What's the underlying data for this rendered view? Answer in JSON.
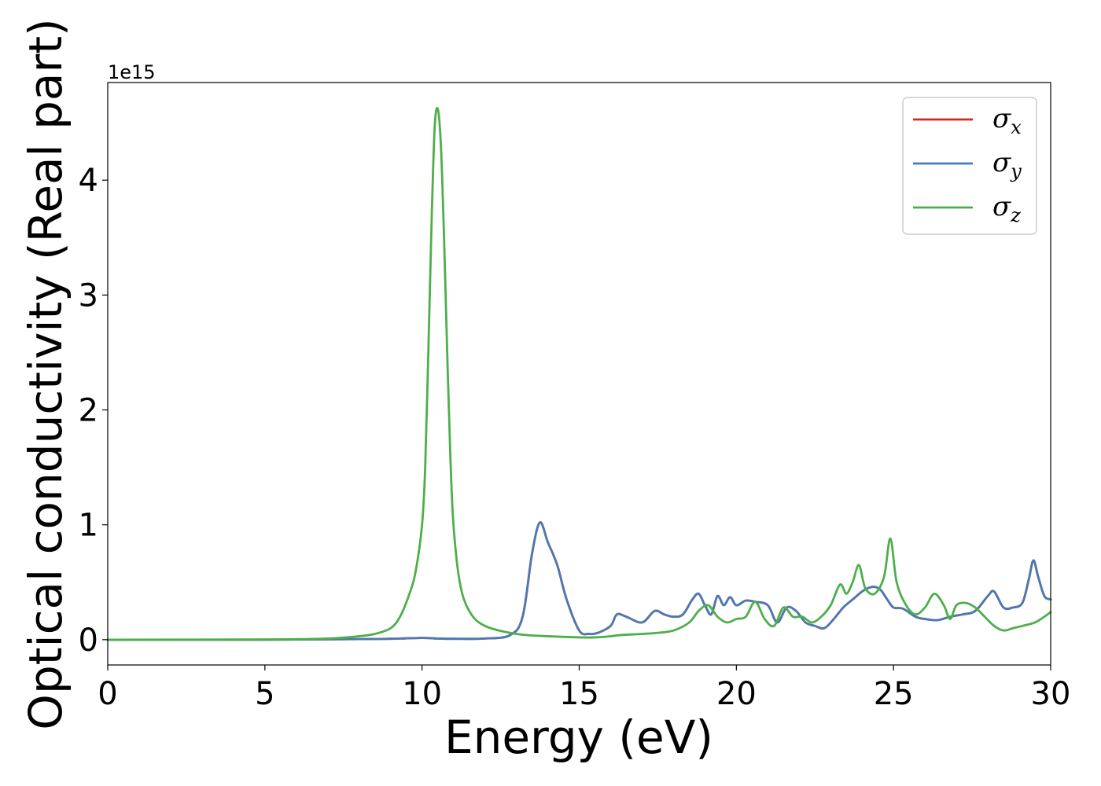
{
  "chart_data": {
    "type": "line",
    "title": "",
    "xlabel": "Energy (eV)",
    "ylabel": "Optical conductivity (Real part)",
    "y_offset_label": "1e15",
    "xlim": [
      0,
      30
    ],
    "ylim": [
      -0.22,
      4.85
    ],
    "x_ticks": [
      0,
      5,
      10,
      15,
      20,
      25,
      30
    ],
    "y_ticks": [
      0,
      1,
      2,
      3,
      4
    ],
    "grid": false,
    "legend_position": "top-right",
    "series": [
      {
        "name": "σx",
        "symbol": "σ",
        "subscript": "x",
        "color": "#d62728",
        "x": [
          0,
          5,
          8,
          9,
          10,
          10.5,
          11,
          12,
          12.8,
          13.2,
          13.5,
          13.75,
          14,
          14.3,
          14.6,
          15,
          15.3,
          15.6,
          16,
          16.2,
          16.5,
          17,
          17.4,
          17.7,
          18,
          18.3,
          18.6,
          18.8,
          19,
          19.2,
          19.4,
          19.6,
          19.8,
          20,
          20.3,
          20.6,
          21,
          21.3,
          21.6,
          21.9,
          22.2,
          22.5,
          22.8,
          23.1,
          23.4,
          23.7,
          24,
          24.2,
          24.4,
          24.6,
          24.8,
          25,
          25.3,
          25.7,
          26,
          26.4,
          26.8,
          27.2,
          27.6,
          28,
          28.2,
          28.5,
          28.8,
          29.1,
          29.3,
          29.45,
          29.6,
          29.8,
          30
        ],
        "values": [
          0,
          0,
          0.005,
          0.008,
          0.015,
          0.01,
          0.008,
          0.01,
          0.04,
          0.2,
          0.75,
          1.02,
          0.85,
          0.65,
          0.35,
          0.08,
          0.05,
          0.06,
          0.12,
          0.22,
          0.2,
          0.15,
          0.25,
          0.22,
          0.2,
          0.22,
          0.35,
          0.4,
          0.3,
          0.22,
          0.38,
          0.3,
          0.37,
          0.3,
          0.34,
          0.33,
          0.3,
          0.15,
          0.28,
          0.25,
          0.15,
          0.12,
          0.1,
          0.18,
          0.28,
          0.35,
          0.42,
          0.45,
          0.46,
          0.43,
          0.35,
          0.28,
          0.27,
          0.2,
          0.18,
          0.17,
          0.2,
          0.22,
          0.25,
          0.38,
          0.42,
          0.28,
          0.28,
          0.32,
          0.52,
          0.69,
          0.55,
          0.38,
          0.35
        ]
      },
      {
        "name": "σy",
        "symbol": "σ",
        "subscript": "y",
        "color": "#4a7ab1",
        "x": [
          0,
          5,
          8,
          9,
          10,
          10.5,
          11,
          12,
          12.8,
          13.2,
          13.5,
          13.75,
          14,
          14.3,
          14.6,
          15,
          15.3,
          15.6,
          16,
          16.2,
          16.5,
          17,
          17.4,
          17.7,
          18,
          18.3,
          18.6,
          18.8,
          19,
          19.2,
          19.4,
          19.6,
          19.8,
          20,
          20.3,
          20.6,
          21,
          21.3,
          21.6,
          21.9,
          22.2,
          22.5,
          22.8,
          23.1,
          23.4,
          23.7,
          24,
          24.2,
          24.4,
          24.6,
          24.8,
          25,
          25.3,
          25.7,
          26,
          26.4,
          26.8,
          27.2,
          27.6,
          28,
          28.2,
          28.5,
          28.8,
          29.1,
          29.3,
          29.45,
          29.6,
          29.8,
          30
        ],
        "values": [
          0,
          0,
          0.005,
          0.008,
          0.015,
          0.01,
          0.008,
          0.01,
          0.04,
          0.2,
          0.75,
          1.02,
          0.85,
          0.65,
          0.35,
          0.08,
          0.05,
          0.06,
          0.12,
          0.22,
          0.2,
          0.15,
          0.25,
          0.22,
          0.2,
          0.22,
          0.35,
          0.4,
          0.3,
          0.22,
          0.38,
          0.3,
          0.37,
          0.3,
          0.34,
          0.33,
          0.3,
          0.15,
          0.28,
          0.25,
          0.15,
          0.12,
          0.1,
          0.18,
          0.28,
          0.35,
          0.42,
          0.45,
          0.46,
          0.43,
          0.35,
          0.28,
          0.27,
          0.2,
          0.18,
          0.17,
          0.2,
          0.22,
          0.25,
          0.38,
          0.42,
          0.28,
          0.28,
          0.32,
          0.52,
          0.69,
          0.55,
          0.38,
          0.35
        ]
      },
      {
        "name": "σz",
        "symbol": "σ",
        "subscript": "z",
        "color": "#4daf4a",
        "x": [
          0,
          5,
          7,
          8,
          8.5,
          9,
          9.3,
          9.6,
          9.8,
          10,
          10.1,
          10.2,
          10.3,
          10.4,
          10.5,
          10.6,
          10.7,
          10.8,
          10.9,
          11,
          11.2,
          11.5,
          12,
          13,
          14,
          15,
          15.5,
          16,
          16.3,
          17,
          17.5,
          18,
          18.5,
          18.8,
          19.1,
          19.4,
          19.7,
          20,
          20.3,
          20.6,
          20.9,
          21.2,
          21.5,
          21.8,
          22.1,
          22.4,
          22.7,
          23,
          23.3,
          23.5,
          23.7,
          23.9,
          24.1,
          24.4,
          24.7,
          24.9,
          25.1,
          25.4,
          25.7,
          26,
          26.3,
          26.6,
          26.8,
          27,
          27.3,
          27.6,
          27.9,
          28.2,
          28.5,
          28.8,
          29.1,
          29.5,
          29.8,
          30
        ],
        "values": [
          0,
          0.002,
          0.01,
          0.03,
          0.05,
          0.1,
          0.2,
          0.4,
          0.6,
          1.0,
          1.5,
          2.5,
          3.6,
          4.45,
          4.62,
          4.3,
          3.5,
          2.5,
          1.6,
          1.0,
          0.5,
          0.25,
          0.12,
          0.05,
          0.03,
          0.02,
          0.02,
          0.03,
          0.04,
          0.05,
          0.06,
          0.08,
          0.15,
          0.25,
          0.3,
          0.2,
          0.15,
          0.18,
          0.2,
          0.33,
          0.18,
          0.12,
          0.28,
          0.2,
          0.2,
          0.15,
          0.2,
          0.3,
          0.48,
          0.4,
          0.5,
          0.65,
          0.45,
          0.4,
          0.55,
          0.88,
          0.5,
          0.3,
          0.22,
          0.28,
          0.4,
          0.3,
          0.18,
          0.3,
          0.32,
          0.28,
          0.2,
          0.12,
          0.08,
          0.1,
          0.12,
          0.15,
          0.2,
          0.24
        ]
      }
    ]
  }
}
